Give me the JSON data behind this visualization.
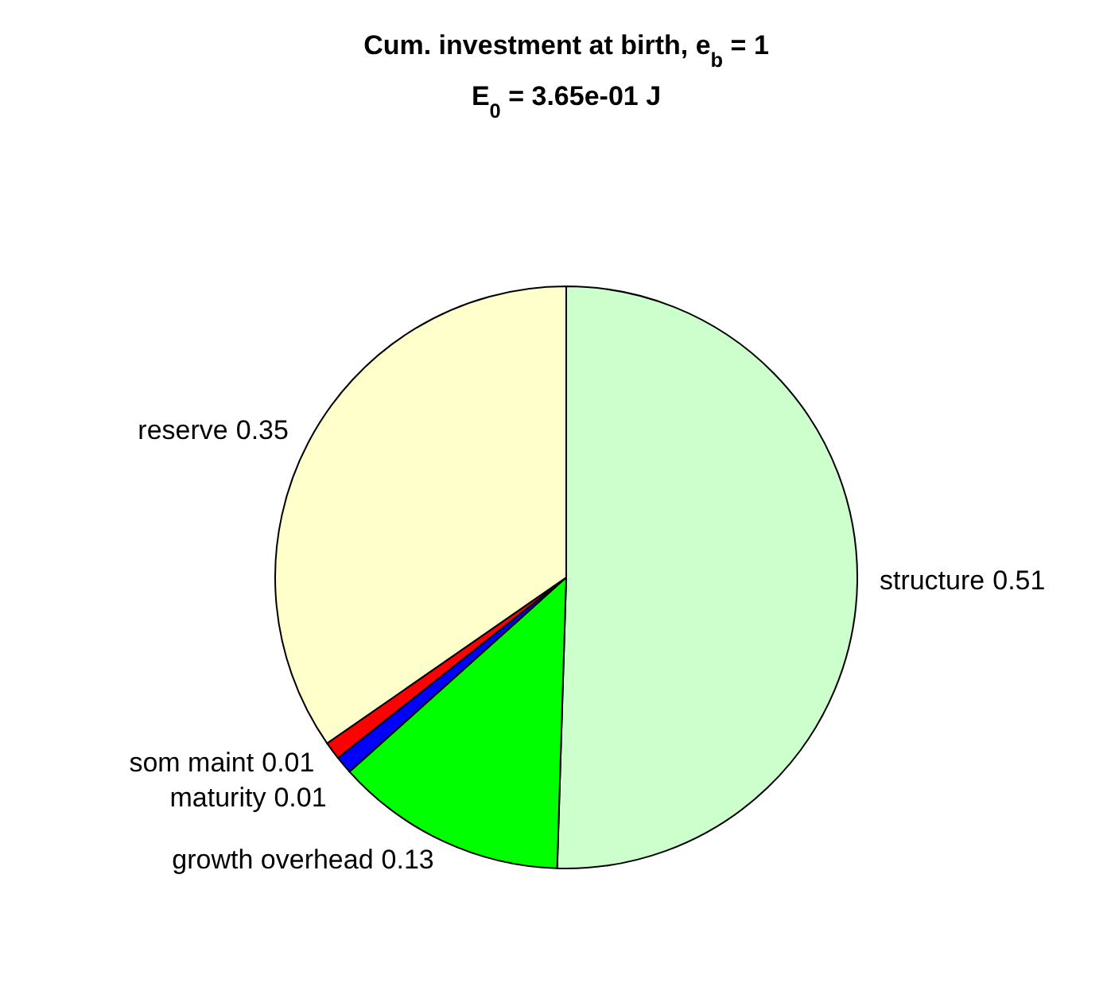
{
  "chart_data": {
    "type": "pie",
    "title": "Cum. investment at birth, e$_{b}$ = 1",
    "subtitle": "E$_{0}$ = 3.65e-01 J",
    "categories": [
      "structure",
      "growth overhead",
      "maturity",
      "som maint",
      "reserve"
    ],
    "values": [
      0.51,
      0.13,
      0.01,
      0.01,
      0.35
    ],
    "colors": [
      "#ccffcc",
      "#00ff00",
      "#0000ff",
      "#ff0000",
      "#ffffcc"
    ],
    "data_labels": true,
    "legend": false
  }
}
